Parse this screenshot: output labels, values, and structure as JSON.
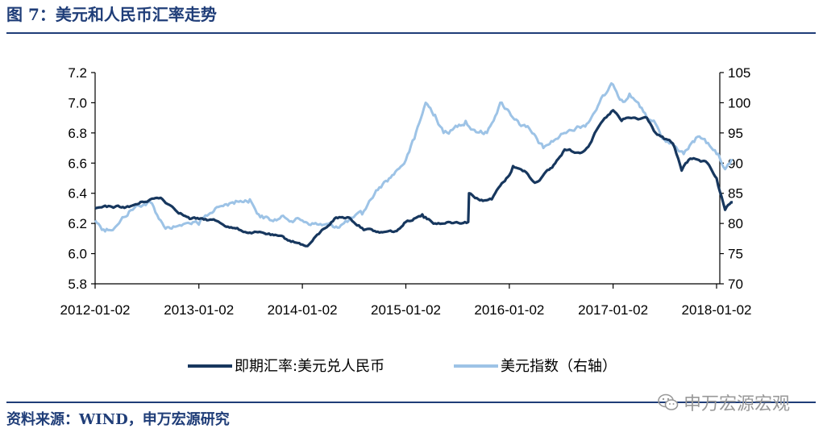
{
  "figure": {
    "title": "图 7：美元和人民币汇率走势",
    "source": "资料来源：WIND，申万宏源研究",
    "watermark": "申万宏源宏观",
    "watermark_icon": "wechat-icon"
  },
  "colors": {
    "rule": "#1f3d78",
    "series_cny": "#17375e",
    "series_dxy": "#9dc3e6"
  },
  "chart_data": {
    "type": "line",
    "title": "",
    "x_ticks": [
      "2012-01-02",
      "2013-01-02",
      "2014-01-02",
      "2015-01-02",
      "2016-01-02",
      "2017-01-02",
      "2018-01-02"
    ],
    "y_left_ticks": [
      "7.2",
      "7.0",
      "6.8",
      "6.6",
      "6.4",
      "6.2",
      "6.0",
      "5.8"
    ],
    "y_right_ticks": [
      "105",
      "100",
      "95",
      "90",
      "85",
      "80",
      "75",
      "70"
    ],
    "y_left_range": [
      5.8,
      7.2
    ],
    "y_right_range": [
      70,
      105
    ],
    "x_range": [
      "2012-01-02",
      "2018-02-28"
    ],
    "grid": false,
    "legend_position": "bottom",
    "series": [
      {
        "name": "即期汇率:美元兑人民币",
        "axis": "left",
        "points": [
          [
            "2012-01-02",
            6.3
          ],
          [
            "2012-03-01",
            6.31
          ],
          [
            "2012-05-01",
            6.31
          ],
          [
            "2012-07-15",
            6.36
          ],
          [
            "2012-08-20",
            6.37
          ],
          [
            "2012-10-01",
            6.31
          ],
          [
            "2012-12-01",
            6.23
          ],
          [
            "2013-01-02",
            6.23
          ],
          [
            "2013-03-01",
            6.22
          ],
          [
            "2013-05-01",
            6.17
          ],
          [
            "2013-07-01",
            6.14
          ],
          [
            "2013-09-01",
            6.13
          ],
          [
            "2013-11-01",
            6.1
          ],
          [
            "2014-01-02",
            6.06
          ],
          [
            "2014-01-20",
            6.05
          ],
          [
            "2014-03-01",
            6.13
          ],
          [
            "2014-05-01",
            6.24
          ],
          [
            "2014-06-15",
            6.24
          ],
          [
            "2014-08-01",
            6.17
          ],
          [
            "2014-10-01",
            6.14
          ],
          [
            "2014-12-01",
            6.15
          ],
          [
            "2015-01-02",
            6.21
          ],
          [
            "2015-03-01",
            6.26
          ],
          [
            "2015-04-15",
            6.2
          ],
          [
            "2015-06-01",
            6.21
          ],
          [
            "2015-08-10",
            6.21
          ],
          [
            "2015-08-13",
            6.4
          ],
          [
            "2015-10-01",
            6.35
          ],
          [
            "2015-11-01",
            6.36
          ],
          [
            "2015-12-01",
            6.45
          ],
          [
            "2016-01-02",
            6.52
          ],
          [
            "2016-01-15",
            6.58
          ],
          [
            "2016-03-01",
            6.54
          ],
          [
            "2016-04-01",
            6.47
          ],
          [
            "2016-06-01",
            6.57
          ],
          [
            "2016-07-15",
            6.69
          ],
          [
            "2016-09-01",
            6.67
          ],
          [
            "2016-10-01",
            6.7
          ],
          [
            "2016-11-15",
            6.85
          ],
          [
            "2017-01-02",
            6.95
          ],
          [
            "2017-02-01",
            6.88
          ],
          [
            "2017-03-01",
            6.9
          ],
          [
            "2017-04-01",
            6.89
          ],
          [
            "2017-05-01",
            6.9
          ],
          [
            "2017-06-01",
            6.8
          ],
          [
            "2017-07-01",
            6.76
          ],
          [
            "2017-08-01",
            6.73
          ],
          [
            "2017-09-01",
            6.55
          ],
          [
            "2017-09-15",
            6.6
          ],
          [
            "2017-10-01",
            6.63
          ],
          [
            "2017-11-01",
            6.62
          ],
          [
            "2017-12-01",
            6.6
          ],
          [
            "2018-01-02",
            6.5
          ],
          [
            "2018-02-01",
            6.29
          ],
          [
            "2018-02-28",
            6.34
          ]
        ]
      },
      {
        "name": "美元指数（右轴）",
        "axis": "right",
        "points": [
          [
            "2012-01-02",
            80.5
          ],
          [
            "2012-02-01",
            79.0
          ],
          [
            "2012-03-15",
            79.5
          ],
          [
            "2012-05-01",
            82.0
          ],
          [
            "2012-06-01",
            83.0
          ],
          [
            "2012-07-15",
            83.5
          ],
          [
            "2012-09-01",
            79.5
          ],
          [
            "2012-10-15",
            79.5
          ],
          [
            "2012-12-01",
            80.0
          ],
          [
            "2013-01-02",
            79.8
          ],
          [
            "2013-03-01",
            82.5
          ],
          [
            "2013-05-01",
            83.5
          ],
          [
            "2013-07-01",
            84.0
          ],
          [
            "2013-08-01",
            81.5
          ],
          [
            "2013-09-15",
            80.5
          ],
          [
            "2013-11-01",
            81.0
          ],
          [
            "2014-01-02",
            80.5
          ],
          [
            "2014-03-01",
            79.8
          ],
          [
            "2014-05-01",
            79.5
          ],
          [
            "2014-06-15",
            80.5
          ],
          [
            "2014-08-01",
            81.5
          ],
          [
            "2014-09-01",
            84.0
          ],
          [
            "2014-10-01",
            86.0
          ],
          [
            "2014-11-15",
            88.0
          ],
          [
            "2015-01-02",
            90.5
          ],
          [
            "2015-02-01",
            94.0
          ],
          [
            "2015-03-13",
            100.0
          ],
          [
            "2015-04-15",
            98.0
          ],
          [
            "2015-05-15",
            95.0
          ],
          [
            "2015-06-15",
            95.5
          ],
          [
            "2015-08-01",
            97.0
          ],
          [
            "2015-09-01",
            95.5
          ],
          [
            "2015-10-15",
            95.0
          ],
          [
            "2015-12-01",
            100.0
          ],
          [
            "2016-01-02",
            98.5
          ],
          [
            "2016-02-01",
            97.0
          ],
          [
            "2016-03-01",
            96.0
          ],
          [
            "2016-05-01",
            92.5
          ],
          [
            "2016-06-15",
            94.0
          ],
          [
            "2016-08-01",
            95.5
          ],
          [
            "2016-10-01",
            96.5
          ],
          [
            "2016-11-15",
            100.0
          ],
          [
            "2017-01-02",
            103.0
          ],
          [
            "2017-02-01",
            100.5
          ],
          [
            "2017-03-01",
            101.5
          ],
          [
            "2017-04-01",
            100.0
          ],
          [
            "2017-05-01",
            97.5
          ],
          [
            "2017-06-01",
            96.5
          ],
          [
            "2017-07-01",
            94.0
          ],
          [
            "2017-08-01",
            93.0
          ],
          [
            "2017-09-08",
            91.5
          ],
          [
            "2017-10-15",
            93.5
          ],
          [
            "2017-11-15",
            94.0
          ],
          [
            "2017-12-15",
            92.5
          ],
          [
            "2018-01-02",
            91.5
          ],
          [
            "2018-02-01",
            89.0
          ],
          [
            "2018-02-28",
            90.5
          ]
        ]
      }
    ]
  }
}
